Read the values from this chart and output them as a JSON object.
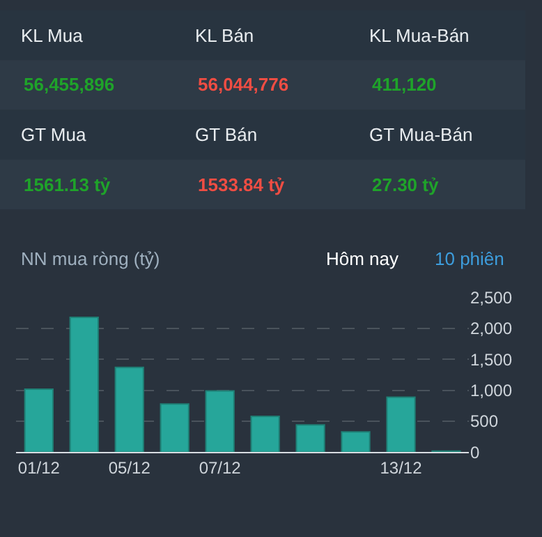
{
  "chart_data": [
    {
      "type": "other",
      "annotations": [
        "KL Mua",
        "KL Bán",
        "KL Mua-Bán",
        "56,455,896",
        "56,044,776",
        "411,120",
        "GT Mua",
        "GT Bán",
        "GT Mua-Bán",
        "1561.13 tỷ",
        "1533.84 tỷ",
        "27.30 tỷ"
      ]
    },
    {
      "type": "bar",
      "title": "NN mua ròng (tỷ)",
      "annotations": [
        "Hôm nay",
        "10 phiên"
      ],
      "categories": [
        "01/12",
        null,
        "05/12",
        null,
        "07/12",
        null,
        null,
        null,
        "13/12",
        null
      ],
      "values": [
        1020,
        2180,
        1370,
        780,
        990,
        580,
        440,
        330,
        890,
        20
      ],
      "color": "#26a69a",
      "ylim": [
        0,
        2500
      ],
      "yticks": [
        0,
        500,
        {
          "value": 1000,
          "label": "1,000"
        },
        {
          "value": 1500,
          "label": "1,500"
        },
        {
          "value": 2000,
          "label": "2,000"
        },
        {
          "value": 2500,
          "label": "2,500"
        }
      ],
      "grid": "y",
      "legend": false
    }
  ]
}
